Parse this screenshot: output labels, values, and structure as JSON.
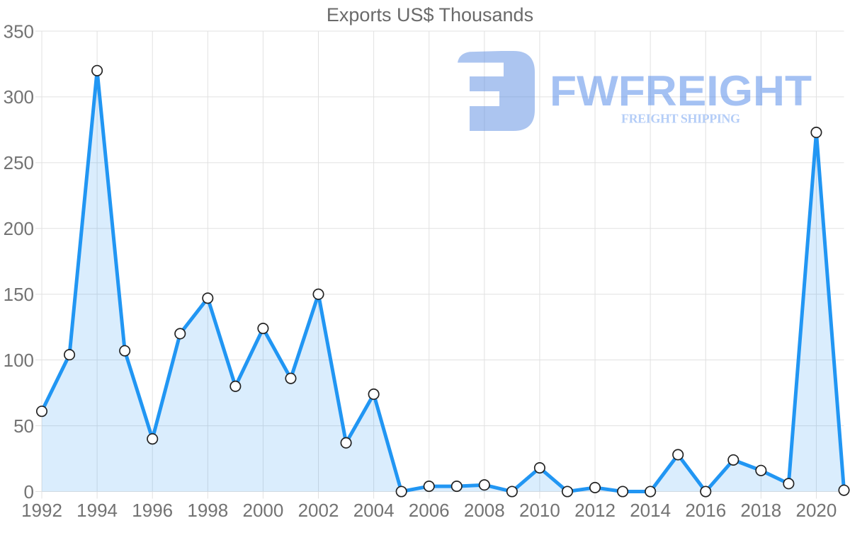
{
  "chart_data": {
    "type": "area",
    "title": "Exports US$ Thousands",
    "x": [
      1992,
      1993,
      1994,
      1995,
      1996,
      1997,
      1998,
      1999,
      2000,
      2001,
      2002,
      2003,
      2004,
      2005,
      2006,
      2007,
      2008,
      2009,
      2010,
      2011,
      2012,
      2013,
      2014,
      2015,
      2016,
      2017,
      2018,
      2019,
      2020,
      2021
    ],
    "series": [
      {
        "name": "Exports US$ Thousands",
        "values": [
          61,
          104,
          320,
          107,
          40,
          120,
          147,
          80,
          124,
          86,
          150,
          37,
          74,
          0,
          4,
          4,
          5,
          0,
          18,
          0,
          3,
          0,
          0,
          28,
          0,
          24,
          16,
          6,
          273,
          1
        ]
      }
    ],
    "xlabel": "",
    "ylabel": "",
    "ylim": [
      0,
      350
    ],
    "ytick_step": 50,
    "xtick_step": 2,
    "grid": true,
    "legend": false,
    "marker_shape": "circle",
    "colors": {
      "line": "#2196f3",
      "area_fill": "#2196f3",
      "area_fill_opacity": 0.17,
      "grid": "#e1e1e1",
      "tick_label": "#737373",
      "title": "#6a6a6a",
      "marker_fill": "#ffffff",
      "marker_stroke": "#222222"
    }
  },
  "watermark": {
    "brand": "FWFREIGHT",
    "tagline": "FREIGHT SHIPPING",
    "logo_icon": "fwfreight-f-mark",
    "logo_color": "#5b8ce2",
    "brand_color": "#4c84e8",
    "tagline_color": "#6b9cf0",
    "opacity": 0.5
  }
}
